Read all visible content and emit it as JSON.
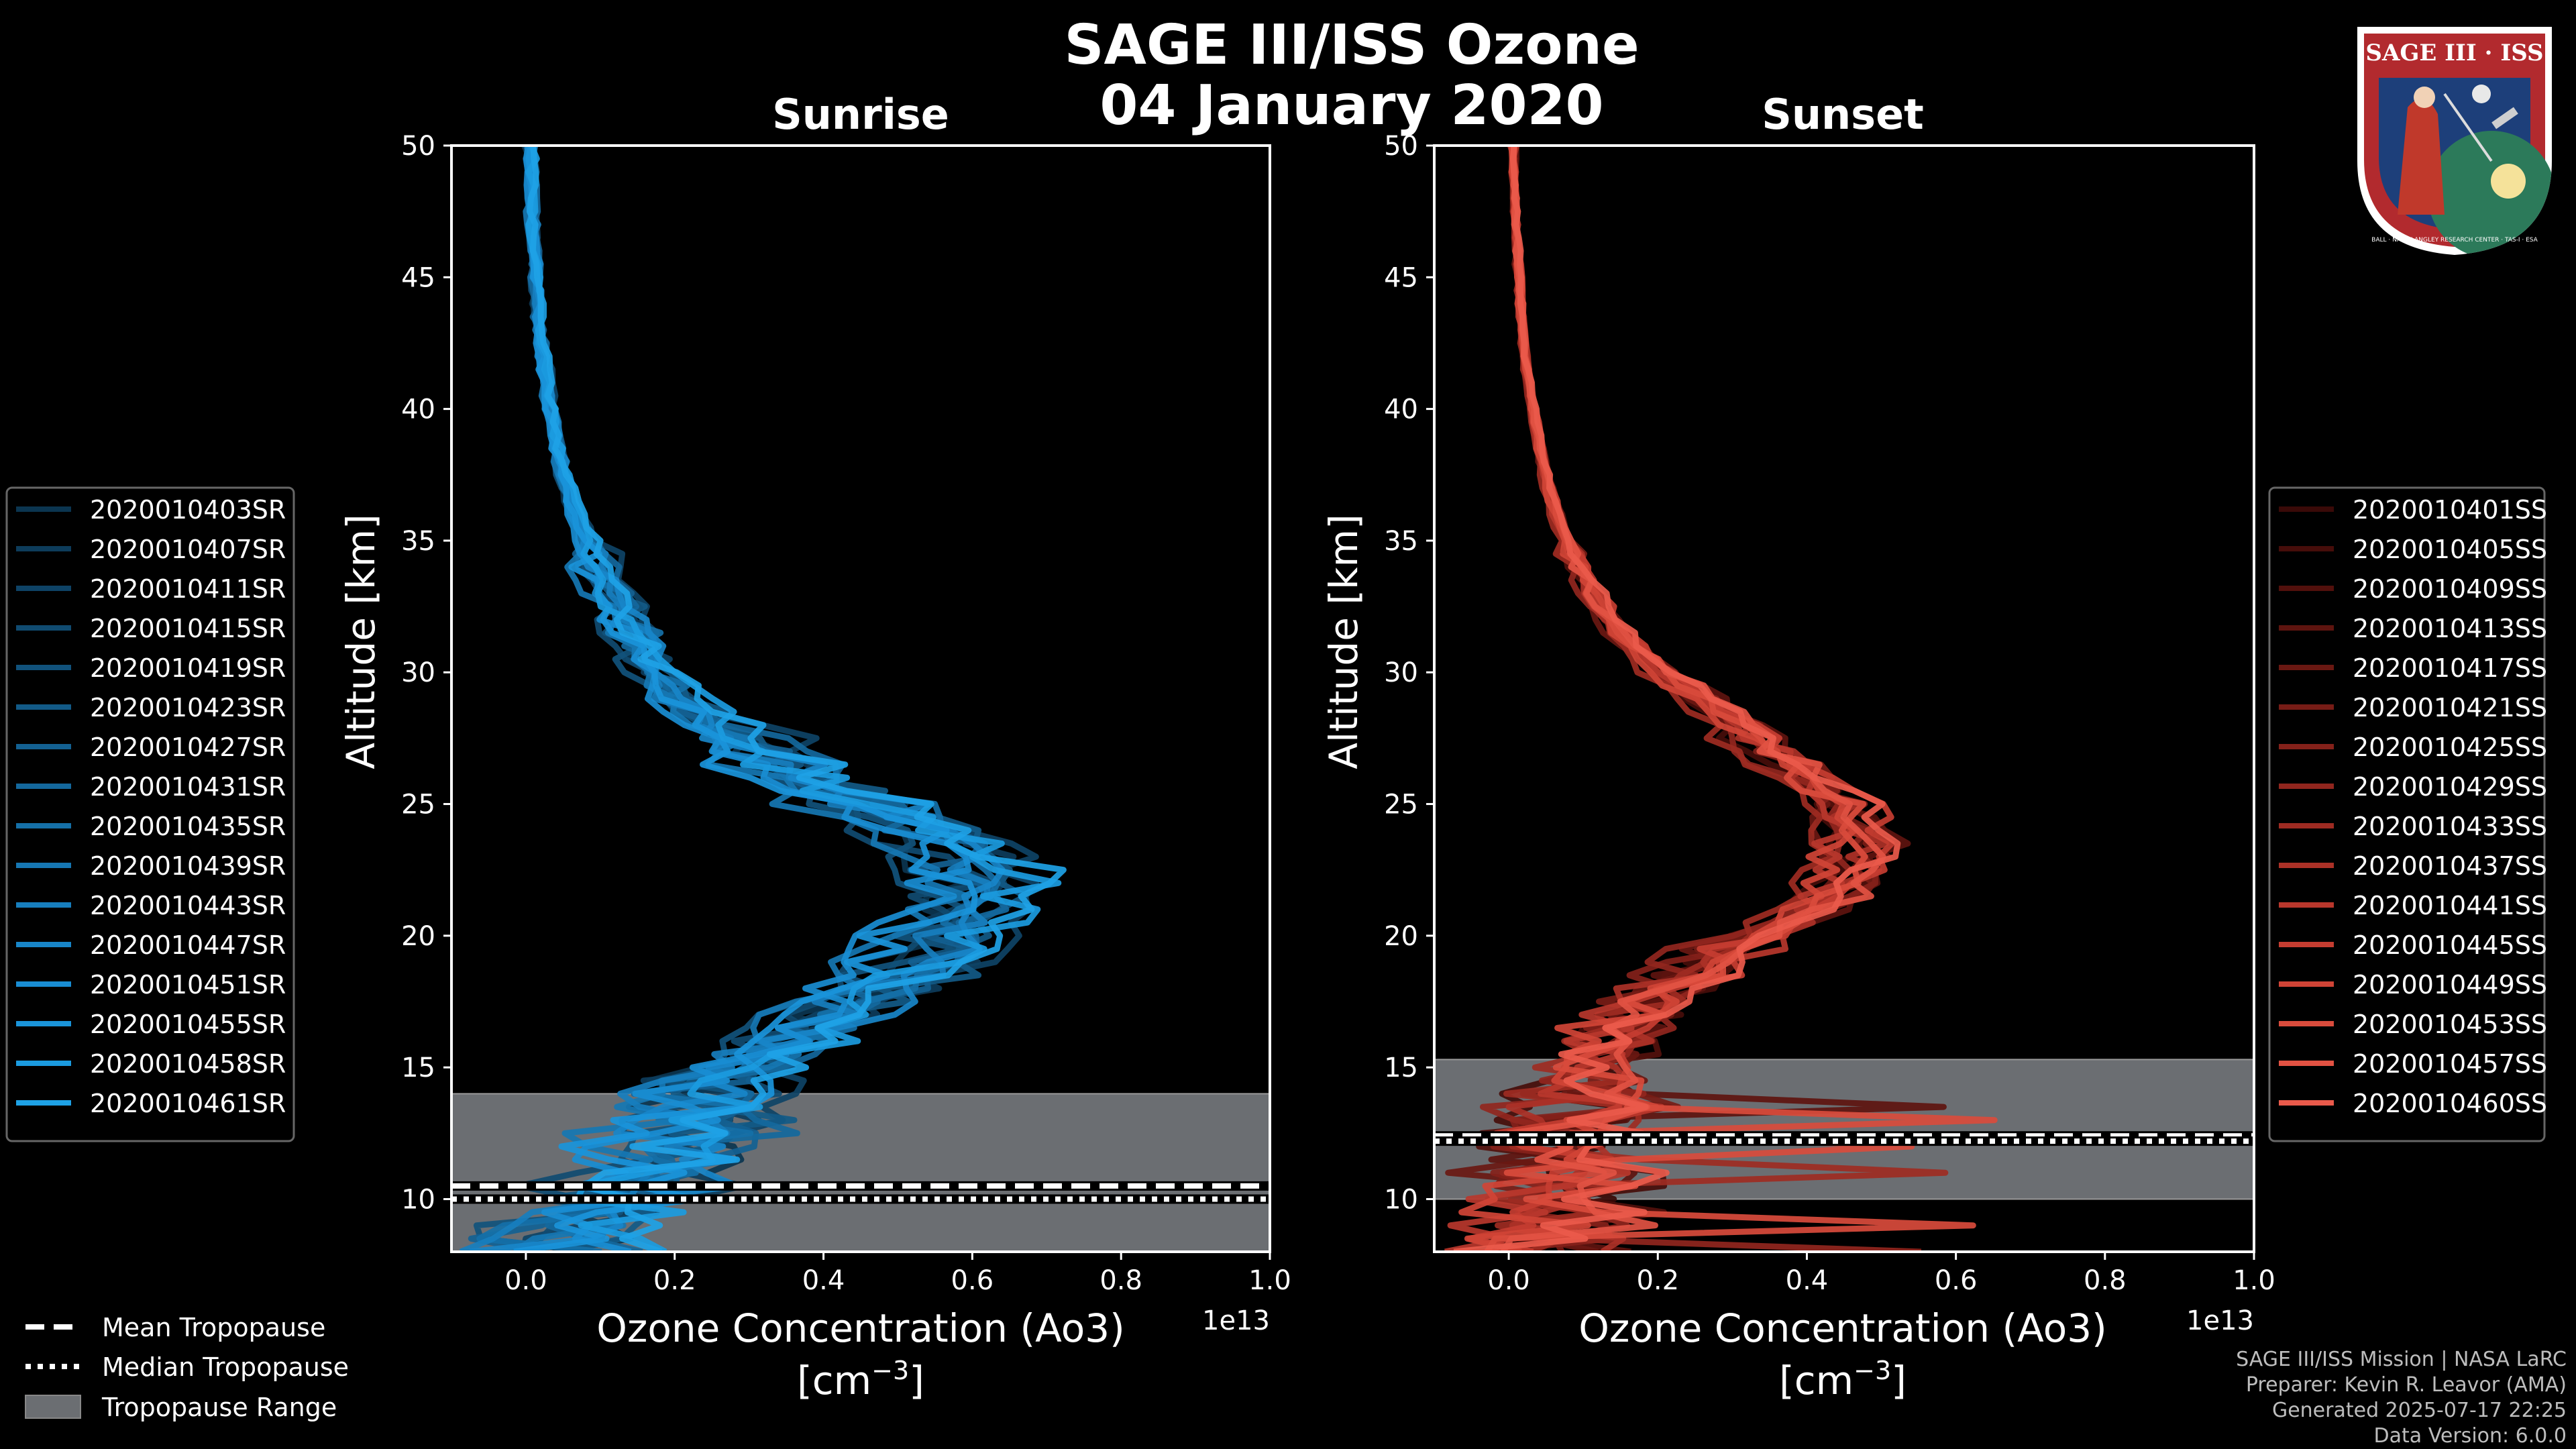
{
  "title_line1": "SAGE III/ISS Ozone",
  "title_line2": "04 January 2020",
  "logo": {
    "text": "SAGE III · ISS",
    "ring_text": "BALL · NASA LANGLEY RESEARCH CENTER · TAS-I · ESA"
  },
  "colors": {
    "sunrise": "#1e9ae0",
    "sunset": "#e8584a",
    "tropo_band": "#6b6e72",
    "frame": "#ffffff"
  },
  "bottom_legend": {
    "mean": "Mean Tropopause",
    "median": "Median Tropopause",
    "range": "Tropopause Range"
  },
  "credits": [
    "SAGE III/ISS Mission | NASA LaRC",
    "Preparer: Kevin R. Leavor (AMA)",
    "Generated 2025-07-17 22:25",
    "Data Version: 6.0.0"
  ],
  "chart_data": [
    {
      "type": "line",
      "title": "Sunrise",
      "xlabel_line1": "Ozone Concentration (Ao3)",
      "xlabel_line2": "[cm",
      "xlabel_sup": "−3",
      "xlabel_close": "]",
      "x_offset_label": "1e13",
      "ylabel": "Altitude [km]",
      "xlim": [
        -0.1,
        1.0
      ],
      "ylim": [
        8,
        50
      ],
      "xticks": [
        0.0,
        0.2,
        0.4,
        0.6,
        0.8,
        1.0
      ],
      "xtick_labels": [
        "0.0",
        "0.2",
        "0.4",
        "0.6",
        "0.8",
        "1.0"
      ],
      "yticks": [
        10,
        15,
        20,
        25,
        30,
        35,
        40,
        45,
        50
      ],
      "ytick_labels": [
        "10",
        "15",
        "20",
        "25",
        "30",
        "35",
        "40",
        "45",
        "50"
      ],
      "tropopause": {
        "mean": 10.5,
        "median": 10.0,
        "range": [
          8.0,
          14.0
        ]
      },
      "mean_profile": {
        "altitude": [
          8,
          9,
          10,
          11,
          12,
          13,
          14,
          15,
          16,
          17,
          18,
          19,
          20,
          21,
          22,
          23,
          24,
          25,
          26,
          27,
          28,
          29,
          30,
          31,
          32,
          33,
          34,
          35,
          36,
          37,
          38,
          39,
          40,
          41,
          42,
          43,
          44,
          45,
          46,
          47,
          48,
          49,
          50
        ],
        "ozone": [
          0.05,
          0.08,
          0.12,
          0.16,
          0.2,
          0.22,
          0.25,
          0.3,
          0.35,
          0.4,
          0.46,
          0.52,
          0.55,
          0.58,
          0.59,
          0.57,
          0.52,
          0.44,
          0.36,
          0.3,
          0.25,
          0.2,
          0.17,
          0.15,
          0.13,
          0.11,
          0.095,
          0.08,
          0.065,
          0.055,
          0.045,
          0.038,
          0.032,
          0.027,
          0.022,
          0.018,
          0.015,
          0.013,
          0.011,
          0.009,
          0.008,
          0.007,
          0.006
        ]
      },
      "series": [
        {
          "name": "2020010403SR",
          "color": "#0b3550"
        },
        {
          "name": "2020010407SR",
          "color": "#0d3c5b"
        },
        {
          "name": "2020010411SR",
          "color": "#0e4366"
        },
        {
          "name": "2020010415SR",
          "color": "#104b71"
        },
        {
          "name": "2020010419SR",
          "color": "#11527c"
        },
        {
          "name": "2020010423SR",
          "color": "#125a87"
        },
        {
          "name": "2020010427SR",
          "color": "#136192"
        },
        {
          "name": "2020010431SR",
          "color": "#14689d"
        },
        {
          "name": "2020010435SR",
          "color": "#1570a8"
        },
        {
          "name": "2020010439SR",
          "color": "#1677b3"
        },
        {
          "name": "2020010443SR",
          "color": "#177ebe"
        },
        {
          "name": "2020010447SR",
          "color": "#1886c9"
        },
        {
          "name": "2020010451SR",
          "color": "#198dd3"
        },
        {
          "name": "2020010455SR",
          "color": "#1a94da"
        },
        {
          "name": "2020010458SR",
          "color": "#1b9be0"
        },
        {
          "name": "2020010461SR",
          "color": "#1ea2e6"
        }
      ]
    },
    {
      "type": "line",
      "title": "Sunset",
      "xlabel_line1": "Ozone Concentration (Ao3)",
      "xlabel_line2": "[cm",
      "xlabel_sup": "−3",
      "xlabel_close": "]",
      "x_offset_label": "1e13",
      "ylabel": "Altitude [km]",
      "xlim": [
        -0.1,
        1.0
      ],
      "ylim": [
        8,
        50
      ],
      "xticks": [
        0.0,
        0.2,
        0.4,
        0.6,
        0.8,
        1.0
      ],
      "xtick_labels": [
        "0.0",
        "0.2",
        "0.4",
        "0.6",
        "0.8",
        "1.0"
      ],
      "yticks": [
        10,
        15,
        20,
        25,
        30,
        35,
        40,
        45,
        50
      ],
      "ytick_labels": [
        "10",
        "15",
        "20",
        "25",
        "30",
        "35",
        "40",
        "45",
        "50"
      ],
      "tropopause": {
        "mean": 12.4,
        "median": 12.2,
        "range": [
          10.0,
          15.3
        ]
      },
      "mean_profile": {
        "altitude": [
          8,
          9,
          10,
          11,
          12,
          13,
          14,
          15,
          16,
          17,
          18,
          19,
          20,
          21,
          22,
          23,
          24,
          25,
          26,
          27,
          28,
          29,
          30,
          31,
          32,
          33,
          34,
          35,
          36,
          37,
          38,
          39,
          40,
          41,
          42,
          43,
          44,
          45,
          46,
          47,
          48,
          49,
          50
        ],
        "ozone": [
          0.03,
          0.05,
          0.06,
          0.07,
          0.08,
          0.09,
          0.1,
          0.11,
          0.13,
          0.16,
          0.2,
          0.26,
          0.33,
          0.39,
          0.43,
          0.45,
          0.45,
          0.43,
          0.39,
          0.34,
          0.3,
          0.25,
          0.2,
          0.16,
          0.13,
          0.11,
          0.09,
          0.075,
          0.062,
          0.052,
          0.044,
          0.037,
          0.031,
          0.026,
          0.022,
          0.018,
          0.015,
          0.013,
          0.011,
          0.009,
          0.008,
          0.007,
          0.006
        ]
      },
      "series": [
        {
          "name": "2020010401SS",
          "color": "#3a0a08"
        },
        {
          "name": "2020010405SS",
          "color": "#460d0a"
        },
        {
          "name": "2020010409SS",
          "color": "#52100c"
        },
        {
          "name": "2020010413SS",
          "color": "#5e140f"
        },
        {
          "name": "2020010417SS",
          "color": "#6a1812"
        },
        {
          "name": "2020010421SS",
          "color": "#771c16"
        },
        {
          "name": "2020010425SS",
          "color": "#84211a"
        },
        {
          "name": "2020010429SS",
          "color": "#91261e"
        },
        {
          "name": "2020010433SS",
          "color": "#9e2b22"
        },
        {
          "name": "2020010437SS",
          "color": "#ab3127"
        },
        {
          "name": "2020010441SS",
          "color": "#b8372c"
        },
        {
          "name": "2020010445SS",
          "color": "#c53d31"
        },
        {
          "name": "2020010449SS",
          "color": "#d04436"
        },
        {
          "name": "2020010453SS",
          "color": "#d94b3c"
        },
        {
          "name": "2020010457SS",
          "color": "#e25243"
        },
        {
          "name": "2020010460SS",
          "color": "#ea5a4b"
        }
      ]
    }
  ]
}
